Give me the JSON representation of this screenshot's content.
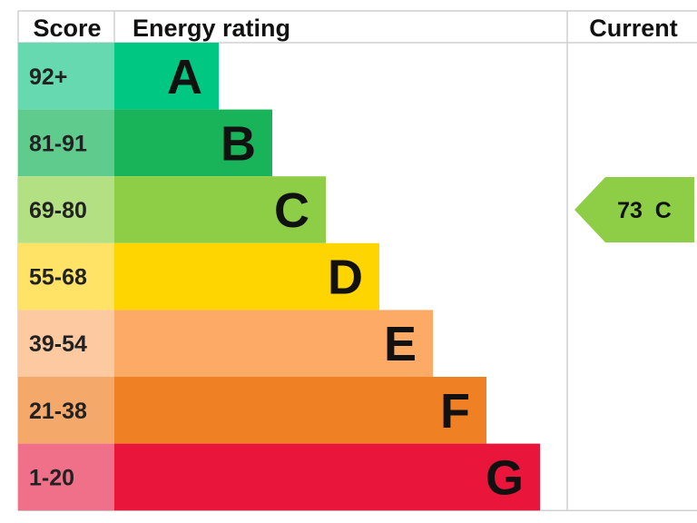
{
  "header": {
    "score": "Score",
    "energy_rating": "Energy rating",
    "current": "Current"
  },
  "chart_data": {
    "type": "bar",
    "categories": [
      "A",
      "B",
      "C",
      "D",
      "E",
      "F",
      "G"
    ],
    "score_ranges": [
      "92+",
      "81-91",
      "69-80",
      "55-68",
      "39-54",
      "21-38",
      "1-20"
    ],
    "colors": [
      "#00c781",
      "#19b459",
      "#8dce46",
      "#ffd500",
      "#fcaa65",
      "#ef8023",
      "#e9153b"
    ],
    "score_colors": [
      "#66d9b0",
      "#5fcc8d",
      "#b4e084",
      "#ffe366",
      "#fdc9a0",
      "#f4a96b",
      "#f07089"
    ],
    "current": {
      "label": "73 C",
      "score": 73,
      "band": "C",
      "color": "#8dce46"
    }
  }
}
